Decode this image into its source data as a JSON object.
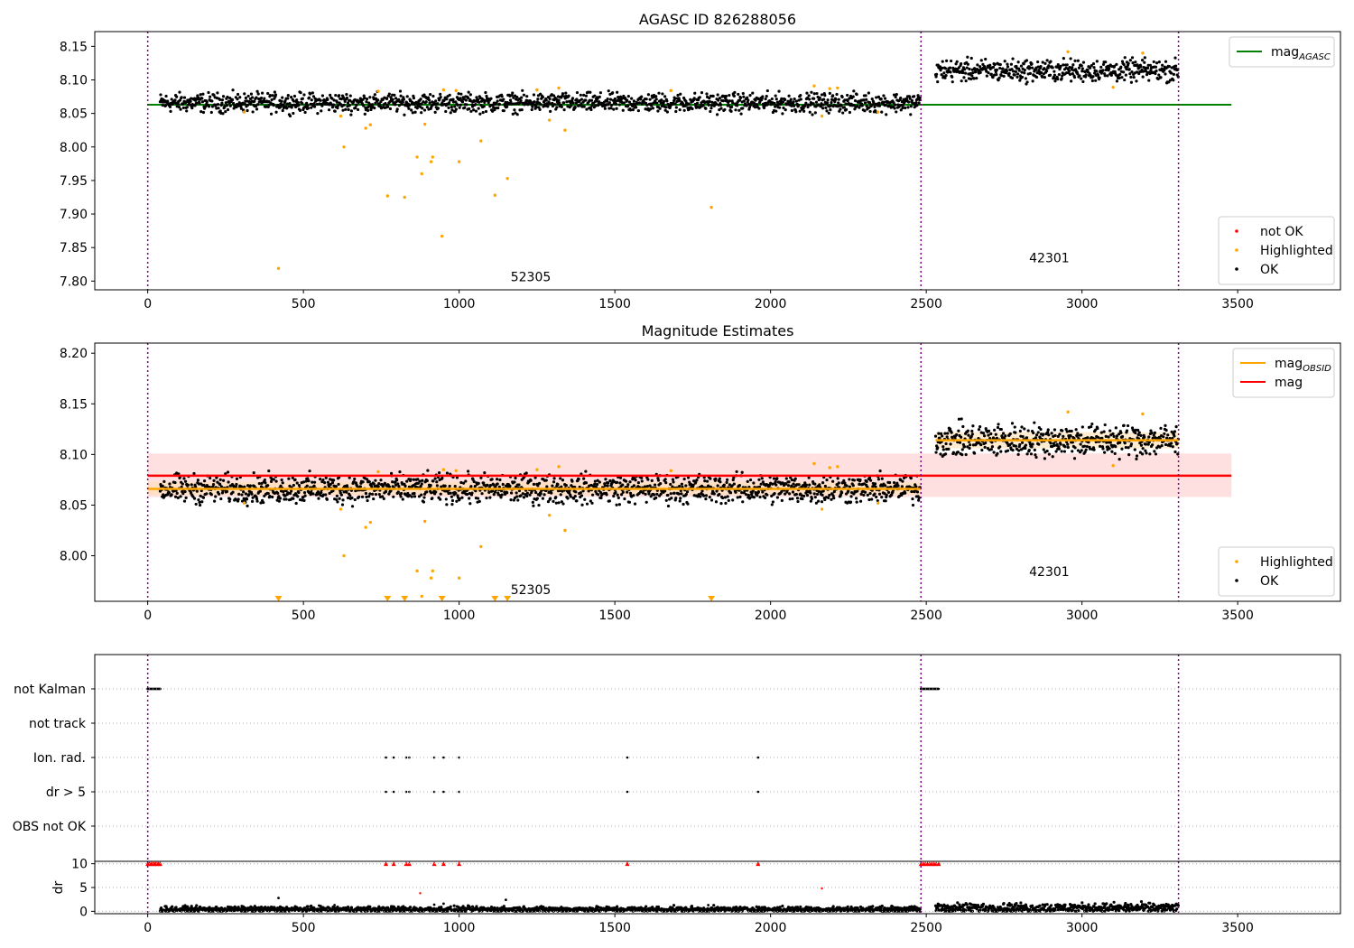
{
  "chart_data": [
    {
      "type": "scatter",
      "title": "AGASC ID 826288056",
      "xlabel": "",
      "ylabel": "",
      "xlim": [
        -170,
        3830
      ],
      "ylim": [
        7.787,
        8.172
      ],
      "xticks": [
        0,
        500,
        1000,
        1500,
        2000,
        2500,
        3000,
        3500
      ],
      "yticks": [
        7.8,
        7.85,
        7.9,
        7.95,
        8.0,
        8.05,
        8.1,
        8.15
      ],
      "ytick_labels": [
        "7.80",
        "7.85",
        "7.90",
        "7.95",
        "8.00",
        "8.05",
        "8.10",
        "8.15"
      ],
      "grid": false,
      "legends": [
        {
          "position": "top-right",
          "entries": [
            {
              "name_base": "mag",
              "name_sub": "AGASC",
              "color": "#008000",
              "kind": "line"
            }
          ]
        },
        {
          "position": "bottom-right",
          "entries": [
            {
              "name": "not OK",
              "color": "#ff0000",
              "kind": "point"
            },
            {
              "name": "Highlighted",
              "color": "#ffa500",
              "kind": "point"
            },
            {
              "name": "OK",
              "color": "#000000",
              "kind": "point"
            }
          ]
        }
      ],
      "obsid_boundaries": [
        0,
        2483,
        3310
      ],
      "obsid_labels": [
        {
          "text": "52305",
          "x": 1230,
          "y": 7.8
        },
        {
          "text": "42301",
          "x": 2895,
          "y": 7.828
        }
      ],
      "lines": [
        {
          "name": "mag_AGASC",
          "x": [
            0,
            3480
          ],
          "y": [
            8.063,
            8.063
          ],
          "color": "#008000"
        }
      ],
      "series": [
        {
          "name": "OK",
          "color": "#000000",
          "segments": [
            {
              "x_start": 40,
              "x_end": 2480,
              "baseline": 8.066,
              "spread": 0.007
            },
            {
              "x_start": 2530,
              "x_end": 3310,
              "baseline": 8.114,
              "spread": 0.008
            }
          ]
        },
        {
          "name": "Highlighted",
          "color": "#ffa500",
          "x": [
            420,
            620,
            630,
            700,
            715,
            770,
            825,
            865,
            880,
            890,
            910,
            915,
            945,
            1000,
            1070,
            1115,
            1155,
            1290,
            1340,
            1810,
            2165,
            310,
            740,
            950,
            990,
            1250,
            1320,
            1680,
            2140,
            2190,
            2215,
            2345,
            2955,
            3100,
            3195
          ],
          "y": [
            7.819,
            8.046,
            8.0,
            8.028,
            8.033,
            7.927,
            7.925,
            7.985,
            7.96,
            8.034,
            7.978,
            7.985,
            7.867,
            7.978,
            8.009,
            7.928,
            7.953,
            8.04,
            8.025,
            7.91,
            8.046,
            8.052,
            8.083,
            8.085,
            8.084,
            8.085,
            8.088,
            8.084,
            8.091,
            8.087,
            8.088,
            8.052,
            8.142,
            8.089,
            8.14
          ]
        }
      ]
    },
    {
      "type": "scatter",
      "title": "Magnitude Estimates",
      "xlabel": "",
      "ylabel": "",
      "xlim": [
        -170,
        3830
      ],
      "ylim": [
        7.955,
        8.21
      ],
      "xticks": [
        0,
        500,
        1000,
        1500,
        2000,
        2500,
        3000,
        3500
      ],
      "yticks": [
        8.0,
        8.05,
        8.1,
        8.15,
        8.2
      ],
      "ytick_labels": [
        "8.00",
        "8.05",
        "8.10",
        "8.15",
        "8.20"
      ],
      "grid": false,
      "legends": [
        {
          "position": "top-right",
          "entries": [
            {
              "name_base": "mag",
              "name_sub": "OBSID",
              "color": "#ffa500",
              "kind": "line"
            },
            {
              "name": "mag",
              "color": "#ff0000",
              "kind": "line"
            }
          ]
        },
        {
          "position": "bottom-right",
          "entries": [
            {
              "name": "Highlighted",
              "color": "#ffa500",
              "kind": "point"
            },
            {
              "name": "OK",
              "color": "#000000",
              "kind": "point"
            }
          ]
        }
      ],
      "obsid_boundaries": [
        0,
        2483,
        3310
      ],
      "obsid_labels": [
        {
          "text": "52305",
          "x": 1230,
          "y": 7.962
        },
        {
          "text": "42301",
          "x": 2895,
          "y": 7.98
        }
      ],
      "bands": [
        {
          "x": [
            0,
            3480
          ],
          "y": [
            8.058,
            8.101
          ],
          "color": "#ffcccc"
        },
        {
          "x": [
            0,
            2483
          ],
          "y": [
            8.06,
            8.073
          ],
          "color": "#ffe0b0"
        },
        {
          "x": [
            2530,
            3310
          ],
          "y": [
            8.106,
            8.122
          ],
          "color": "#ffe0b0"
        }
      ],
      "lines": [
        {
          "name": "mag",
          "x": [
            0,
            3480
          ],
          "y": [
            8.079,
            8.079
          ],
          "color": "#ff0000"
        },
        {
          "name": "mag_OBSID",
          "x": [
            0,
            2483
          ],
          "y": [
            8.066,
            8.066
          ],
          "color": "#ffa500"
        },
        {
          "name": "mag_OBSID",
          "x": [
            2530,
            3310
          ],
          "y": [
            8.114,
            8.114
          ],
          "color": "#ffa500"
        }
      ],
      "series": [
        {
          "name": "OK",
          "color": "#000000",
          "segments": [
            {
              "x_start": 40,
              "x_end": 2480,
              "baseline": 8.066,
              "spread": 0.007
            },
            {
              "x_start": 2530,
              "x_end": 3310,
              "baseline": 8.114,
              "spread": 0.008
            }
          ]
        },
        {
          "name": "Highlighted",
          "color": "#ffa500",
          "x": [
            620,
            630,
            700,
            715,
            865,
            880,
            890,
            910,
            915,
            1000,
            1070,
            1290,
            1340,
            2165,
            310,
            740,
            950,
            990,
            1250,
            1320,
            1680,
            2140,
            2190,
            2215,
            2345,
            2955,
            3100,
            3195
          ],
          "y": [
            8.046,
            8.0,
            8.028,
            8.033,
            7.985,
            7.96,
            8.034,
            7.978,
            7.985,
            7.978,
            8.009,
            8.04,
            8.025,
            8.046,
            8.052,
            8.083,
            8.085,
            8.084,
            8.085,
            8.088,
            8.084,
            8.091,
            8.087,
            8.088,
            8.052,
            8.142,
            8.089,
            8.14
          ]
        },
        {
          "name": "Highlighted (off scale)",
          "color": "#ffa500",
          "marker": "triangle-down",
          "x": [
            420,
            770,
            825,
            945,
            1115,
            1155,
            1810
          ]
        }
      ]
    },
    {
      "type": "scatter",
      "title": "",
      "xlabel": "",
      "ylabel": "",
      "xlim": [
        -170,
        3830
      ],
      "categories": [
        "not Kalman",
        "not track",
        "Ion. rad.",
        "dr > 5",
        "OBS not OK"
      ],
      "grid": true,
      "obsid_boundaries": [
        0,
        2483,
        3310
      ],
      "series": [
        {
          "category": "not Kalman",
          "x_ranges": [
            [
              0,
              40
            ],
            [
              2483,
              2540
            ]
          ]
        },
        {
          "category": "not track",
          "x": []
        },
        {
          "category": "Ion. rad.",
          "x": [
            765,
            790,
            830,
            840,
            920,
            950,
            1000,
            1540,
            1960
          ]
        },
        {
          "category": "dr > 5",
          "x": [
            765,
            790,
            830,
            840,
            920,
            950,
            1000,
            1540,
            1960
          ]
        },
        {
          "category": "OBS not OK",
          "x": []
        }
      ]
    },
    {
      "type": "scatter",
      "title": "",
      "xlabel": "",
      "ylabel": "dr",
      "xlim": [
        -170,
        3830
      ],
      "ylim": [
        -0.5,
        10.5
      ],
      "xticks": [
        0,
        500,
        1000,
        1500,
        2000,
        2500,
        3000,
        3500
      ],
      "yticks": [
        0,
        5,
        10
      ],
      "ytick_labels": [
        "0",
        "5",
        "10"
      ],
      "grid": true,
      "obsid_boundaries": [
        0,
        2483,
        3310
      ],
      "series": [
        {
          "name": "OK",
          "color": "#000000",
          "segments": [
            {
              "x_start": 40,
              "x_end": 2480,
              "baseline": 0.4,
              "spread": 0.3
            },
            {
              "x_start": 2530,
              "x_end": 3310,
              "baseline": 0.7,
              "spread": 0.5
            }
          ]
        },
        {
          "name": "outliers",
          "color": "#000000",
          "x": [
            420,
            550,
            600,
            920,
            950,
            1150,
            1800
          ],
          "y": [
            2.8,
            1.2,
            1.3,
            1.4,
            1.6,
            2.4,
            1.3
          ]
        },
        {
          "name": "not OK",
          "color": "#ff0000",
          "x": [
            875,
            2165
          ],
          "y": [
            3.8,
            4.8
          ]
        },
        {
          "name": "clipped",
          "color": "#ff0000",
          "marker": "triangle-up",
          "y_value": 10,
          "x": [
            0,
            5,
            10,
            15,
            20,
            25,
            30,
            35,
            40,
            765,
            790,
            830,
            840,
            920,
            950,
            1000,
            1540,
            1960,
            2483,
            2490,
            2497,
            2504,
            2511,
            2518,
            2525,
            2532,
            2540
          ]
        }
      ]
    }
  ]
}
